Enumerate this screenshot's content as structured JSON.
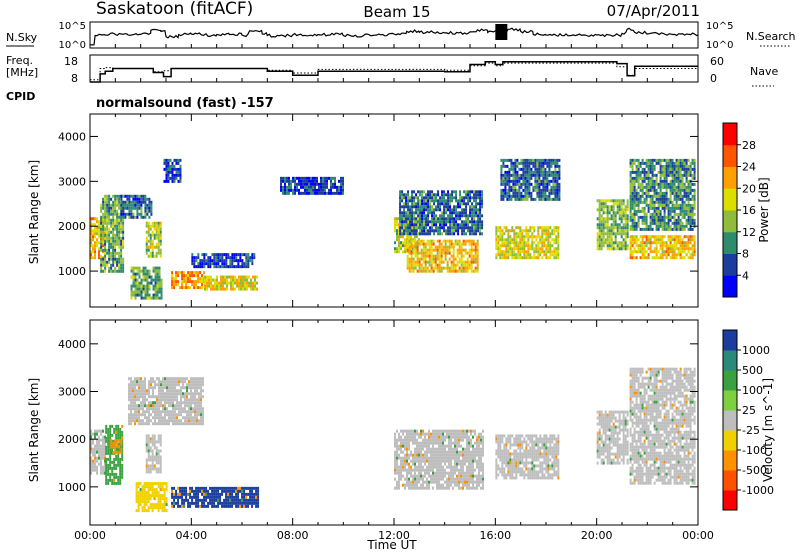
{
  "header": {
    "title": "Saskatoon (fitACF)",
    "beam": "Beam 15",
    "date": "07/Apr/2011"
  },
  "top_panels": {
    "nsky_label": "N.Sky",
    "nsearch_label": "N.Search",
    "noise_ticks": [
      "10^5",
      "10^0"
    ],
    "freq_label": "Freq.",
    "freq_unit": "[MHz]",
    "freq_ticks": [
      "18",
      "8"
    ],
    "nave_label": "Nave",
    "nave_ticks": [
      "60",
      "0"
    ],
    "cpid_label": "CPID",
    "cpid_text": "normalsound (fast) -157"
  },
  "colors": {
    "power": [
      "#0000ff",
      "#1a3d9e",
      "#2e8b6e",
      "#8fbc3a",
      "#dddd00",
      "#ffa000",
      "#ff5500",
      "#ff0000"
    ],
    "velocity": [
      "#1a3d9e",
      "#2a8a7a",
      "#3aa040",
      "#7fd040",
      "#bebebe",
      "#f0d000",
      "#ff9000",
      "#ff5000",
      "#ff0000"
    ]
  },
  "chart_data": [
    {
      "type": "line",
      "name": "noise",
      "x": [
        0.0,
        0.2,
        0.4,
        0.6,
        0.8,
        1.0,
        1.5,
        2.0,
        2.4,
        2.8,
        3.0,
        3.5,
        4.0,
        4.5,
        5.0,
        5.5,
        6.0,
        6.3,
        6.8,
        7.0,
        8.0,
        9.0,
        10.0,
        11.0,
        12.0,
        12.5,
        13.0,
        14.0,
        15.0,
        15.3,
        15.7,
        16.0,
        16.5,
        17.0,
        17.5,
        18.0,
        19.0,
        20.0,
        21.0,
        21.2,
        21.5,
        22.0,
        23.0,
        24.0
      ],
      "series": [
        {
          "name": "N.Sky",
          "values": [
            0.7,
            2.4,
            2.6,
            2.5,
            2.8,
            2.6,
            2.5,
            2.6,
            3.4,
            3.2,
            2.2,
            2.6,
            2.7,
            2.5,
            2.6,
            2.6,
            2.5,
            3.3,
            2.7,
            2.4,
            2.5,
            2.6,
            2.4,
            2.6,
            2.7,
            3.2,
            3.0,
            2.9,
            3.1,
            3.5,
            3.0,
            3.3,
            3.6,
            3.2,
            2.6,
            2.5,
            2.4,
            2.5,
            2.8,
            3.6,
            3.0,
            2.7,
            2.6,
            2.5
          ]
        }
      ],
      "ylabel": "N.Sky"
    },
    {
      "type": "line",
      "name": "frequency-nave",
      "x": [
        0.0,
        0.4,
        0.6,
        0.9,
        1.2,
        2.5,
        2.9,
        3.2,
        4.0,
        6.5,
        7.0,
        8.0,
        9.0,
        10.0,
        11.0,
        12.0,
        14.0,
        14.8,
        15.0,
        15.6,
        16.0,
        16.3,
        18.5,
        20.0,
        20.8,
        21.2,
        21.5,
        24.0
      ],
      "series": [
        {
          "name": "Freq.",
          "values": [
            8,
            11,
            12,
            13,
            13,
            11.5,
            10,
            13,
            13,
            13,
            12,
            10.5,
            12,
            12,
            12,
            12,
            11.8,
            11.8,
            14.5,
            15.5,
            14.5,
            15.5,
            15.5,
            15.5,
            14.8,
            10.3,
            13.8,
            13.8
          ]
        },
        {
          "name": "Nave",
          "values": [
            5,
            30,
            32,
            30,
            30,
            23,
            25,
            30,
            30,
            30,
            26,
            20,
            28,
            28,
            28,
            28,
            26,
            26,
            36,
            42,
            36,
            42,
            42,
            42,
            34,
            15,
            30,
            30
          ]
        }
      ],
      "ylim_freq": [
        8,
        18
      ],
      "ylim_nave": [
        0,
        60
      ],
      "xlabel": "",
      "ylabel": "Freq. [MHz]"
    },
    {
      "type": "heatmap",
      "name": "power",
      "xlabel": "",
      "ylabel": "Slant Range [km]",
      "xlim": [
        0,
        24
      ],
      "ylim": [
        200,
        4500
      ],
      "xticks": [
        "00:00",
        "04:00",
        "08:00",
        "12:00",
        "16:00",
        "20:00",
        "00:00"
      ],
      "xtick_values": [
        0,
        4,
        8,
        12,
        16,
        20,
        24
      ],
      "yticks": [
        "4000",
        "3000",
        "2000",
        "1000"
      ],
      "ytick_values": [
        4000,
        3000,
        2000,
        1000
      ],
      "colorbar_label": "Power [dB]",
      "colorbar_ticks": [
        "28",
        "24",
        "20",
        "16",
        "12",
        "8",
        "4"
      ],
      "colorbar_range": [
        0,
        32
      ],
      "regions": [
        {
          "t0": 0.0,
          "t1": 0.6,
          "r0": 1300,
          "r1": 2200,
          "level": 20
        },
        {
          "t0": 0.4,
          "t1": 1.3,
          "r0": 1000,
          "r1": 2700,
          "level": 12
        },
        {
          "t0": 1.2,
          "t1": 2.4,
          "r0": 2200,
          "r1": 2700,
          "level": 8
        },
        {
          "t0": 2.2,
          "t1": 2.8,
          "r0": 1300,
          "r1": 2100,
          "level": 16
        },
        {
          "t0": 1.6,
          "t1": 2.8,
          "r0": 400,
          "r1": 1100,
          "level": 12
        },
        {
          "t0": 2.9,
          "t1": 3.6,
          "r0": 3000,
          "r1": 3500,
          "level": 6
        },
        {
          "t0": 3.2,
          "t1": 4.5,
          "r0": 600,
          "r1": 1000,
          "level": 22
        },
        {
          "t0": 4.5,
          "t1": 6.6,
          "r0": 600,
          "r1": 900,
          "level": 18
        },
        {
          "t0": 4.0,
          "t1": 6.5,
          "r0": 1100,
          "r1": 1400,
          "level": 6
        },
        {
          "t0": 7.5,
          "t1": 10.0,
          "r0": 2700,
          "r1": 3100,
          "level": 5
        },
        {
          "t0": 12.0,
          "t1": 13.0,
          "r0": 1400,
          "r1": 2200,
          "level": 16
        },
        {
          "t0": 12.5,
          "t1": 15.3,
          "r0": 1000,
          "r1": 1700,
          "level": 20
        },
        {
          "t0": 12.2,
          "t1": 15.5,
          "r0": 1800,
          "r1": 2800,
          "level": 8
        },
        {
          "t0": 16.0,
          "t1": 18.5,
          "r0": 1300,
          "r1": 2000,
          "level": 17
        },
        {
          "t0": 16.2,
          "t1": 18.5,
          "r0": 2600,
          "r1": 3500,
          "level": 8
        },
        {
          "t0": 20.0,
          "t1": 21.2,
          "r0": 1500,
          "r1": 2600,
          "level": 14
        },
        {
          "t0": 21.3,
          "t1": 23.9,
          "r0": 1300,
          "r1": 1800,
          "level": 20
        },
        {
          "t0": 21.3,
          "t1": 23.9,
          "r0": 1900,
          "r1": 3500,
          "level": 10
        }
      ]
    },
    {
      "type": "heatmap",
      "name": "velocity",
      "xlabel": "Time UT",
      "ylabel": "Slant Range [km]",
      "xlim": [
        0,
        24
      ],
      "ylim": [
        200,
        4500
      ],
      "xticks": [
        "00:00",
        "04:00",
        "08:00",
        "12:00",
        "16:00",
        "20:00",
        "00:00"
      ],
      "xtick_values": [
        0,
        4,
        8,
        12,
        16,
        20,
        24
      ],
      "yticks": [
        "4000",
        "3000",
        "2000",
        "1000"
      ],
      "ytick_values": [
        4000,
        3000,
        2000,
        1000
      ],
      "colorbar_label": "Velocity [m s^-1]",
      "colorbar_ticks": [
        "1000",
        "500",
        "100",
        "25",
        "-25",
        "-100",
        "-500",
        "-1000"
      ],
      "regions": [
        {
          "t0": 0.0,
          "t1": 0.6,
          "r0": 1300,
          "r1": 2200,
          "value": 0
        },
        {
          "t0": 0.6,
          "t1": 1.3,
          "r0": 1100,
          "r1": 2300,
          "value": 200
        },
        {
          "t0": 0.8,
          "t1": 1.2,
          "r0": 1700,
          "r1": 2000,
          "value": -300
        },
        {
          "t0": 2.2,
          "t1": 2.8,
          "r0": 1300,
          "r1": 2100,
          "value": 0
        },
        {
          "t0": 1.8,
          "t1": 3.0,
          "r0": 500,
          "r1": 1100,
          "value": -80
        },
        {
          "t0": 3.2,
          "t1": 6.6,
          "r0": 600,
          "r1": 1000,
          "value": 700
        },
        {
          "t0": 1.5,
          "t1": 4.5,
          "r0": 2300,
          "r1": 3300,
          "value": 0
        },
        {
          "t0": 12.0,
          "t1": 15.5,
          "r0": 1000,
          "r1": 2200,
          "value": 0
        },
        {
          "t0": 16.0,
          "t1": 18.5,
          "r0": 1200,
          "r1": 2100,
          "value": 0
        },
        {
          "t0": 20.0,
          "t1": 21.2,
          "r0": 1500,
          "r1": 2600,
          "value": 0
        },
        {
          "t0": 21.3,
          "t1": 23.9,
          "r0": 1100,
          "r1": 3500,
          "value": 0
        }
      ]
    }
  ]
}
